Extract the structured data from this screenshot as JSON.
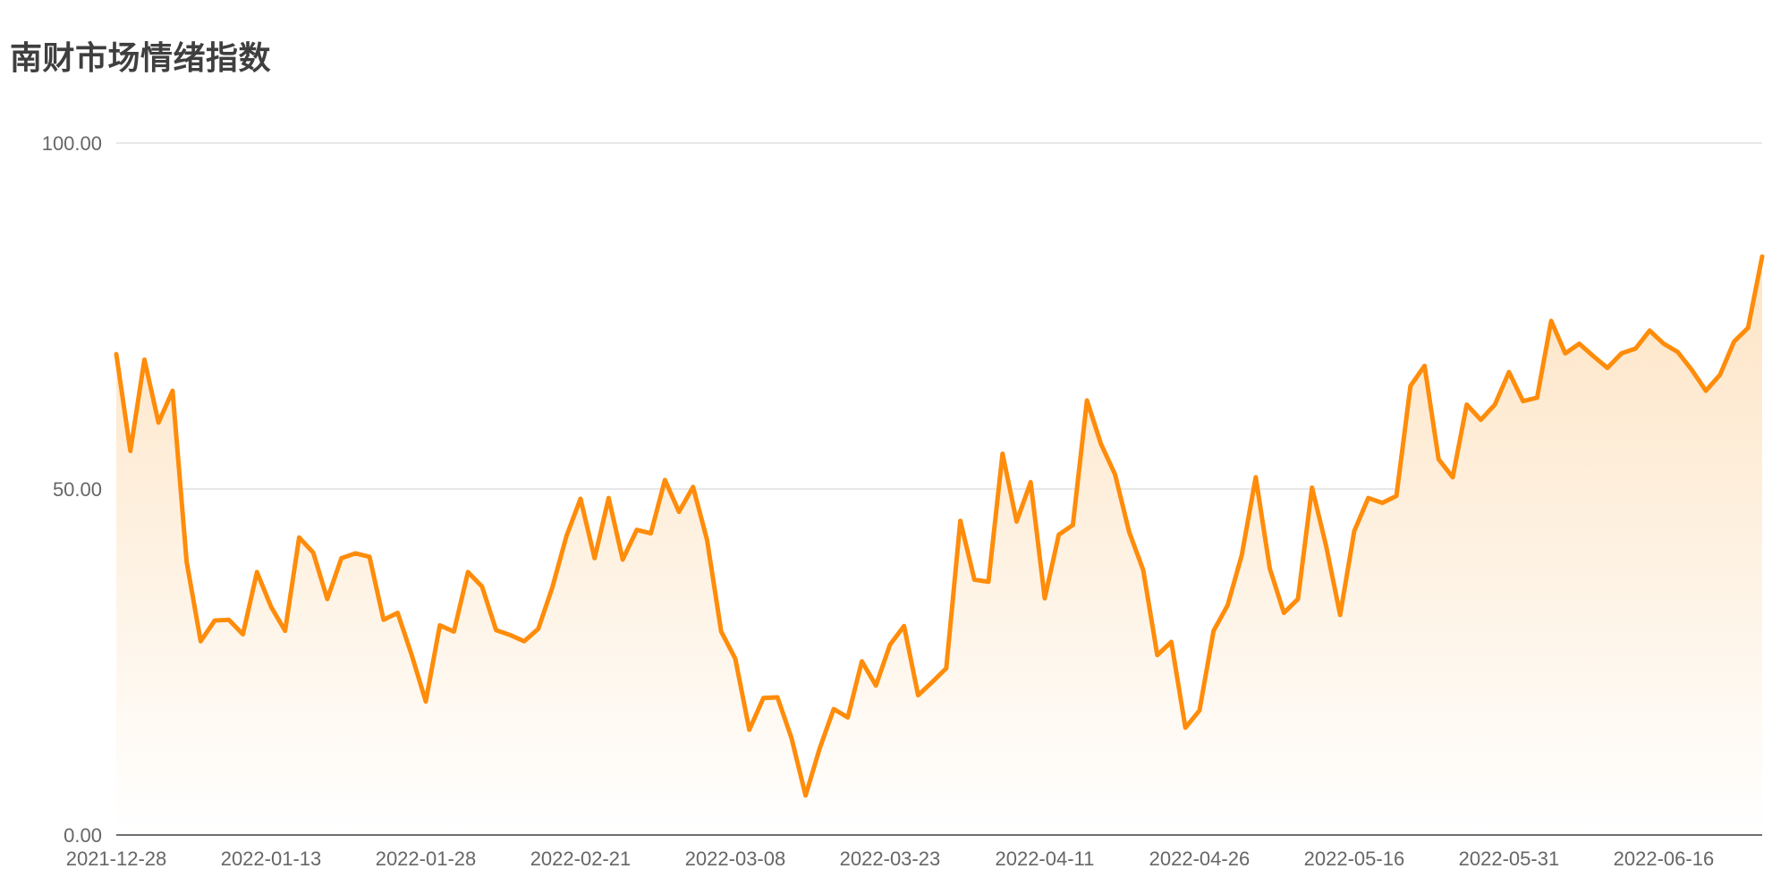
{
  "chart_data": {
    "type": "area",
    "title": "南财市场情绪指数",
    "xlabel": "",
    "ylabel": "",
    "ylim": [
      0,
      100
    ],
    "y_ticks": [
      "0.00",
      "50.00",
      "100.00"
    ],
    "x_ticks": [
      "2021-12-28",
      "2022-01-13",
      "2022-01-28",
      "2022-02-21",
      "2022-03-08",
      "2022-03-23",
      "2022-04-11",
      "2022-04-26",
      "2022-05-16",
      "2022-05-31",
      "2022-06-16"
    ],
    "x_tick_index": [
      0,
      11,
      22,
      33,
      44,
      55,
      66,
      77,
      88,
      99,
      110
    ],
    "grid": true,
    "colors": {
      "line": "#ff8c0a",
      "fill_top": "#fde3c2",
      "fill_bottom": "#ffffff",
      "grid": "#e0e0e0",
      "axis": "#6e6e6e"
    },
    "values": [
      69.5,
      55.5,
      68.7,
      59.6,
      64.2,
      39.5,
      28.0,
      31.0,
      31.1,
      29.0,
      38.0,
      33.0,
      29.5,
      43.0,
      40.8,
      34.1,
      40.0,
      40.7,
      40.2,
      31.1,
      32.1,
      26.0,
      19.3,
      30.3,
      29.4,
      38.0,
      35.9,
      29.6,
      28.9,
      28.0,
      29.8,
      35.8,
      43.2,
      48.6,
      40.0,
      48.7,
      39.8,
      44.1,
      43.6,
      51.3,
      46.7,
      50.3,
      42.6,
      29.4,
      25.5,
      15.2,
      19.8,
      19.9,
      14.0,
      5.7,
      12.5,
      18.2,
      17.0,
      25.1,
      21.6,
      27.5,
      30.2,
      20.2,
      22.1,
      24.1,
      45.4,
      36.9,
      36.6,
      55.1,
      45.3,
      51.0,
      34.2,
      43.4,
      44.8,
      62.8,
      56.5,
      52.1,
      43.8,
      38.3,
      26.0,
      27.9,
      15.5,
      18.0,
      29.5,
      33.2,
      40.4,
      51.7,
      38.5,
      32.1,
      34.1,
      50.2,
      41.8,
      31.8,
      43.9,
      48.7,
      48.0,
      49.0,
      64.9,
      67.8,
      54.3,
      51.7,
      62.2,
      60.0,
      62.2,
      66.9,
      62.7,
      63.2,
      74.3,
      69.6,
      71.0,
      69.2,
      67.5,
      69.6,
      70.3,
      72.9,
      71.0,
      69.8,
      67.2,
      64.2,
      66.5,
      71.3,
      73.3,
      83.6
    ]
  }
}
